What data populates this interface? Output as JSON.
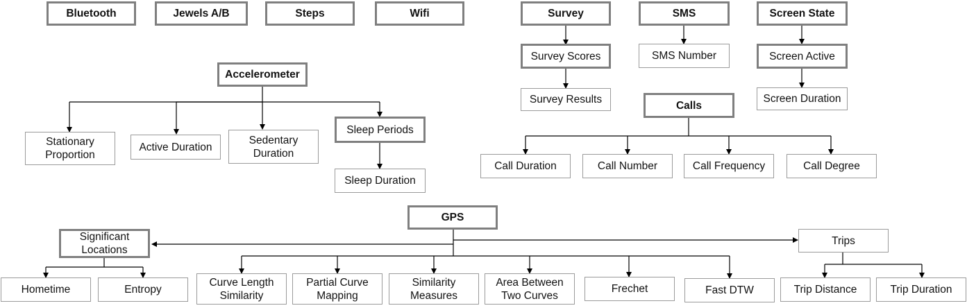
{
  "sources": {
    "bluetooth": "Bluetooth",
    "jewels": "Jewels A/B",
    "steps": "Steps",
    "wifi": "Wifi",
    "survey": "Survey",
    "sms": "SMS",
    "screen_state": "Screen State",
    "accelerometer": "Accelerometer",
    "calls": "Calls",
    "gps": "GPS"
  },
  "survey": {
    "scores": "Survey Scores",
    "results": "Survey Results"
  },
  "sms": {
    "number": "SMS Number"
  },
  "screen": {
    "active": "Screen Active",
    "duration": "Screen Duration"
  },
  "accelerometer": {
    "stationary_proportion": [
      "Stationary",
      "Proportion"
    ],
    "active_duration": "Active Duration",
    "sedentary_duration": [
      "Sedentary",
      "Duration"
    ],
    "sleep_periods": "Sleep Periods",
    "sleep_duration": "Sleep Duration"
  },
  "calls": {
    "duration": "Call Duration",
    "number": "Call Number",
    "frequency": "Call Frequency",
    "degree": "Call Degree"
  },
  "gps": {
    "significant_locations": [
      "Significant",
      "Locations"
    ],
    "trips": "Trips",
    "hometime": "Hometime",
    "entropy": "Entropy",
    "curve_length_similarity": [
      "Curve Length",
      "Similarity"
    ],
    "partial_curve_mapping": [
      "Partial Curve",
      "Mapping"
    ],
    "similarity_measures": [
      "Similarity",
      "Measures"
    ],
    "area_between_two_curves": [
      "Area Between",
      "Two Curves"
    ],
    "frechet": "Frechet",
    "fast_dtw": "Fast DTW",
    "trip_distance": "Trip Distance",
    "trip_duration": "Trip Duration"
  }
}
